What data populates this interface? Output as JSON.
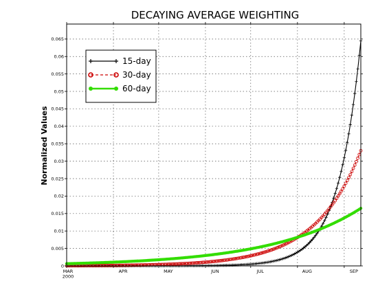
{
  "chart_data": {
    "type": "line",
    "title": "DECAYING AVERAGE WEIGHTING",
    "ylabel": "Normalized Values",
    "xlabel": "",
    "x_ticks": [
      "MAR 2000",
      "APR",
      "MAY",
      "JUN",
      "JUL",
      "AUG",
      "SEP"
    ],
    "x_range_days": [
      0,
      195
    ],
    "ylim": [
      0,
      0.0693
    ],
    "y_ticks": [
      "0",
      "0.005",
      "0.01",
      "0.015",
      "0.02",
      "0.025",
      "0.03",
      "0.035",
      "0.04",
      "0.045",
      "0.05",
      "0.055",
      "0.06",
      "0.065"
    ],
    "grid": true,
    "legend_position": "top-left",
    "series": [
      {
        "name": "15-day",
        "color": "#000000",
        "marker": "plus",
        "line": "solid",
        "tau_days": 15,
        "end_value": 0.0645
      },
      {
        "name": "30-day",
        "color": "#cc0000",
        "marker": "circle",
        "line": "dashed",
        "tau_days": 30,
        "end_value": 0.033
      },
      {
        "name": "60-day",
        "color": "#33dd00",
        "marker": "dot",
        "line": "solid",
        "tau_days": 60,
        "end_value": 0.0165
      }
    ]
  }
}
